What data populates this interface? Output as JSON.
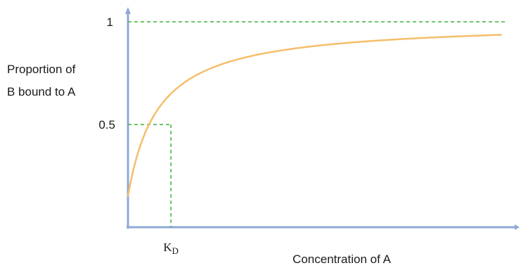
{
  "chart_data": {
    "type": "line",
    "title": "",
    "xlabel": "Concentration of A",
    "ylabel_line1": "Proportion of",
    "ylabel_line2": "B bound to A",
    "xlim": [
      0,
      9
    ],
    "ylim": [
      0,
      1
    ],
    "y_tick_labels": [
      "1",
      "0.5"
    ],
    "x_tick_label": {
      "main": "K",
      "sub": "D"
    },
    "kd": 1,
    "y_at_zero": 0.15,
    "curve_x_end": 8.7,
    "colors": {
      "axis": "#8fa8d6",
      "curve": "#f6be6a",
      "guide": "#3cb13c",
      "text": "#1a1a1a"
    },
    "grid": false,
    "legend": "none"
  }
}
